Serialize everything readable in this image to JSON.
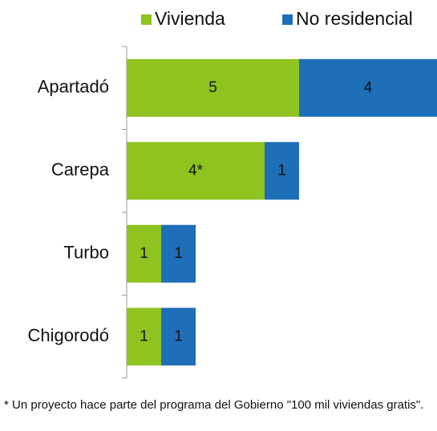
{
  "chart_data": {
    "type": "bar",
    "orientation": "horizontal",
    "stacked": true,
    "categories": [
      "Apartadó",
      "Carepa",
      "Turbo",
      "Chigorodó"
    ],
    "series": [
      {
        "name": "Vivienda",
        "color": "#8fc31f",
        "values": [
          5,
          4,
          1,
          1
        ],
        "value_labels": [
          "5",
          "4*",
          "1",
          "1"
        ]
      },
      {
        "name": "No residencial",
        "color": "#1f6eb8",
        "values": [
          4,
          1,
          1,
          1
        ]
      }
    ],
    "xlim": [
      0,
      9
    ],
    "legend": "top",
    "footnote": "* Un proyecto hace parte del programa del Gobierno \"100 mil viviendas gratis\"."
  }
}
